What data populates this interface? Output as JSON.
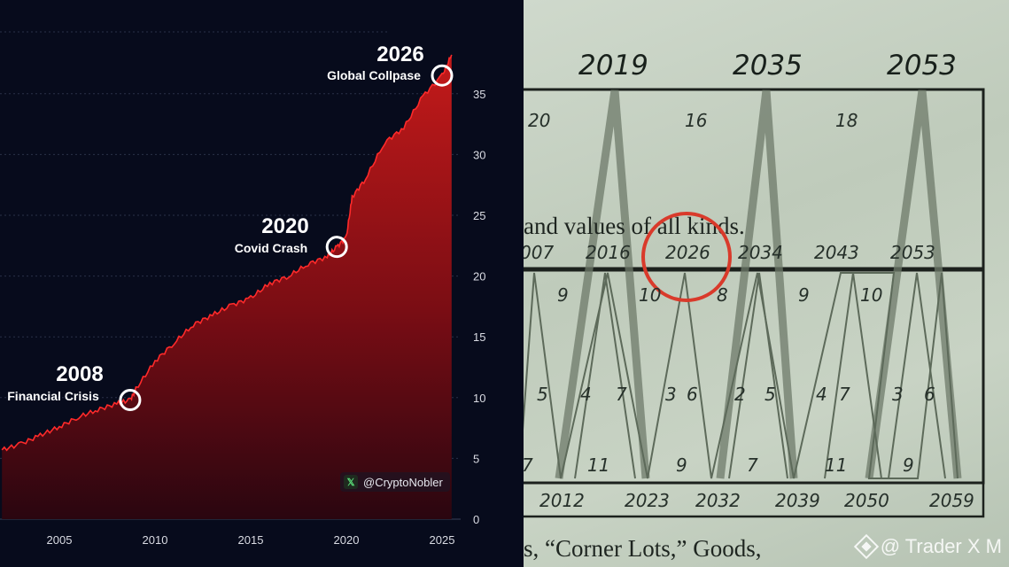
{
  "chart_data": {
    "type": "area",
    "x_ticks": [
      "2005",
      "2010",
      "2015",
      "2020",
      "2025"
    ],
    "y_ticks": [
      "0",
      "5",
      "10",
      "15",
      "20",
      "25",
      "30",
      "35"
    ],
    "xlim": [
      2002,
      2026
    ],
    "ylim": [
      0,
      38
    ],
    "grid": "horizontal",
    "colors": {
      "fill_top": "#c41a1a",
      "fill_bottom": "#3a0710",
      "line": "#ff2a2a",
      "background": "#070b1c"
    },
    "x": [
      2002,
      2003,
      2004,
      2005,
      2006,
      2007,
      2008,
      2008.7,
      2009,
      2010,
      2011,
      2012,
      2013,
      2014,
      2015,
      2016,
      2017,
      2018,
      2019,
      2019.5,
      2020,
      2020.3,
      2021,
      2022,
      2023,
      2024,
      2025,
      2025.5
    ],
    "values": [
      5.7,
      6.2,
      6.9,
      7.6,
      8.4,
      9.0,
      9.5,
      9.8,
      10.7,
      13.0,
      14.5,
      16.0,
      16.8,
      17.6,
      18.2,
      19.4,
      20.0,
      21.0,
      21.6,
      22.4,
      23.2,
      26.5,
      28.0,
      31.0,
      32.2,
      34.8,
      36.5,
      38.2
    ],
    "annotations": [
      {
        "year": "2008",
        "label": "Financial Crisis",
        "x": 2008.7,
        "y": 9.8
      },
      {
        "year": "2020",
        "label": "Covid Crash",
        "x": 2019.5,
        "y": 22.4
      },
      {
        "year": "2026",
        "label": "Global Collpase",
        "x": 2025.0,
        "y": 36.5
      }
    ],
    "credit": "@CryptoNobler",
    "credit_icon": "x-logo-icon"
  },
  "document": {
    "top_years": [
      "2019",
      "2035",
      "2053"
    ],
    "top_numbers": [
      "20",
      "16",
      "18"
    ],
    "text_line_1": "and values of all kinds.",
    "middle_years": [
      "007",
      "2016",
      "2026",
      "2034",
      "2043",
      "2053"
    ],
    "row_numbers_a": [
      "9",
      "10",
      "8",
      "9",
      "10"
    ],
    "row_numbers_b": [
      "5",
      "4",
      "7",
      "3",
      "6",
      "2",
      "5",
      "4",
      "7",
      "3",
      "6"
    ],
    "row_numbers_c": [
      "7",
      "11",
      "9",
      "7",
      "11",
      "9"
    ],
    "bottom_years": [
      "2012",
      "2023",
      "2032",
      "2039",
      "2050",
      "2059"
    ],
    "text_line_2": "s, “Corner Lots,” Goods,",
    "highlight_color": "#d93a2b",
    "watermark": "@ Trader X M",
    "watermark_icon": "binance-diamond-icon"
  }
}
